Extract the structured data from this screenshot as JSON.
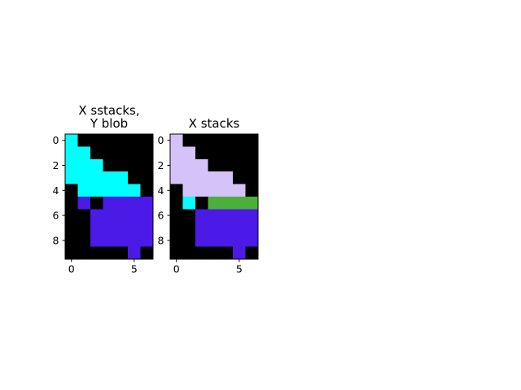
{
  "chart_data": [
    {
      "type": "heatmap",
      "title": [
        "X sstacks,",
        "Y blob"
      ],
      "xticks": [
        0,
        5
      ],
      "yticks": [
        0,
        2,
        4,
        6,
        8
      ],
      "xlim": [
        -0.5,
        6.5
      ],
      "ylim": [
        9.5,
        -0.5
      ],
      "grid": false,
      "palette": {
        "0": "#000000",
        "1": "#00ffff",
        "2": "#4b1ae6",
        "3": "#d5c2f9",
        "4": "#4caf3a"
      },
      "cells": [
        [
          1,
          0,
          0,
          0,
          0,
          0,
          0
        ],
        [
          1,
          1,
          0,
          0,
          0,
          0,
          0
        ],
        [
          1,
          1,
          1,
          0,
          0,
          0,
          0
        ],
        [
          1,
          1,
          1,
          1,
          1,
          0,
          0
        ],
        [
          0,
          1,
          1,
          1,
          1,
          1,
          0
        ],
        [
          0,
          2,
          0,
          2,
          2,
          2,
          2
        ],
        [
          0,
          0,
          2,
          2,
          2,
          2,
          2
        ],
        [
          0,
          0,
          2,
          2,
          2,
          2,
          2
        ],
        [
          0,
          0,
          2,
          2,
          2,
          2,
          2
        ],
        [
          0,
          0,
          0,
          0,
          0,
          2,
          0
        ]
      ]
    },
    {
      "type": "heatmap",
      "title": [
        "X stacks"
      ],
      "xticks": [
        0,
        5
      ],
      "yticks": [
        0,
        2,
        4,
        6,
        8
      ],
      "xlim": [
        -0.5,
        6.5
      ],
      "ylim": [
        9.5,
        -0.5
      ],
      "grid": false,
      "palette": {
        "0": "#000000",
        "1": "#00ffff",
        "2": "#4b1ae6",
        "3": "#d5c2f9",
        "4": "#4caf3a"
      },
      "cells": [
        [
          3,
          0,
          0,
          0,
          0,
          0,
          0
        ],
        [
          3,
          3,
          0,
          0,
          0,
          0,
          0
        ],
        [
          3,
          3,
          3,
          0,
          0,
          0,
          0
        ],
        [
          3,
          3,
          3,
          3,
          3,
          0,
          0
        ],
        [
          0,
          3,
          3,
          3,
          3,
          3,
          0
        ],
        [
          0,
          1,
          0,
          4,
          4,
          4,
          4
        ],
        [
          0,
          0,
          2,
          2,
          2,
          2,
          2
        ],
        [
          0,
          0,
          2,
          2,
          2,
          2,
          2
        ],
        [
          0,
          0,
          2,
          2,
          2,
          2,
          2
        ],
        [
          0,
          0,
          0,
          0,
          0,
          2,
          0
        ]
      ]
    }
  ]
}
